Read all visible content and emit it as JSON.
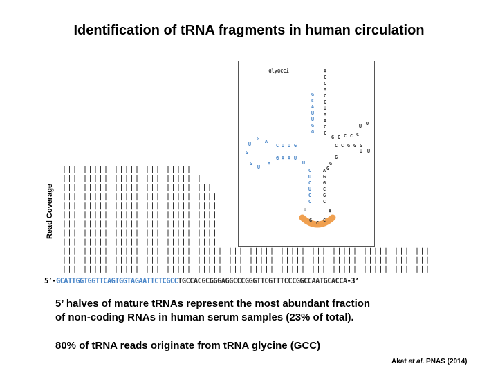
{
  "title": "Identification of tRNA fragments in human circulation",
  "ylabel": "Read Coverage",
  "sequence": {
    "prefix": "5’-",
    "blue": "GCATTGGTGGTTCAGTGGTAGAATTCTCGCC",
    "dark": "TGCCACGCGGGAGGCCCGGGTTCGTTTCCCGGCCAATGCACCA",
    "suffix": "-3’"
  },
  "coverage": {
    "columns_high": 30,
    "columns_low": 41,
    "high_rows": [
      12,
      12,
      12,
      12,
      12,
      12,
      12,
      12,
      12,
      12,
      12,
      12,
      12,
      12,
      12,
      12,
      12,
      12,
      12,
      12,
      12,
      12,
      12,
      12,
      12,
      11,
      11,
      10,
      10,
      9
    ],
    "low_rows": 3
  },
  "structure": {
    "name": "GlyGCCi",
    "blue_color": "#4a86c8",
    "dark_color": "#333333",
    "anticodon_color": "#f0a050",
    "acceptor_top": [
      "A",
      "C",
      "C",
      "A",
      "C",
      "G",
      "U",
      "A",
      "A",
      "C",
      "C"
    ],
    "acceptor_blue": [
      "G",
      "C",
      "A",
      "U",
      "U",
      "G",
      "G"
    ]
  },
  "text": {
    "line1": "5’ halves of mature tRNAs represent the most abundant fraction",
    "line2": "of non-coding RNAs in human serum samples (23% of total).",
    "line3": "80% of tRNA reads originate from tRNA glycine (GCC)",
    "citation_author": "Akat",
    "citation_etal": "et al.",
    "citation_rest": "PNAS (2014)"
  }
}
